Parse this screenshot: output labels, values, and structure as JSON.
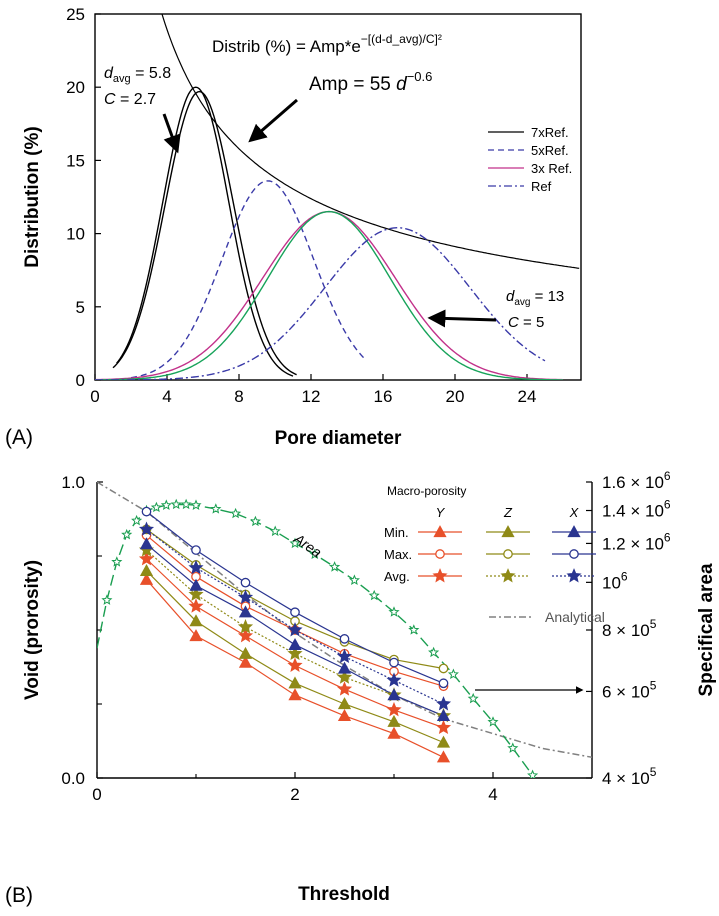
{
  "chart_data": [
    {
      "panel": "(A)",
      "type": "line",
      "xlabel": "Pore diameter",
      "ylabel": "Distribution (%)",
      "xlim": [
        0,
        27
      ],
      "ylim": [
        0,
        25
      ],
      "xticks": [
        "0",
        "4",
        "8",
        "12",
        "16",
        "20",
        "24"
      ],
      "yticks": [
        "0",
        "5",
        "10",
        "15",
        "20",
        "25"
      ],
      "grid": false,
      "legend_position": "right",
      "equation_1": "Distrib (%) = Amp*e",
      "equation_1_exp": "−[(d-d_avg)/C]²",
      "equation_2_a": "Amp = 55 ",
      "equation_2_b": "d",
      "equation_2_exp": "−0.6",
      "note_left": {
        "davg_label": "d",
        "davg_sub": "avg",
        "davg_value": " = 5.8",
        "c_label": "C",
        "c_value": " = 2.7"
      },
      "note_right": {
        "davg_label": "d",
        "davg_sub": "avg",
        "davg_value": " = 13",
        "c_label": "C",
        "c_value": " = 5"
      },
      "envelope": {
        "amp": 55,
        "exp": -0.6
      },
      "series": [
        {
          "name": "7xRef.",
          "color": "#000000",
          "dash": "solid",
          "curves": [
            {
              "amp": 19.7,
              "davg": 5.8,
              "c": 2.7,
              "xmin": 1.0,
              "xmax": 11.2
            },
            {
              "amp": 20.0,
              "davg": 5.6,
              "c": 2.6,
              "xmin": 1.2,
              "xmax": 11.0
            }
          ]
        },
        {
          "name": "5xRef.",
          "color": "#3a3aa8",
          "dash": "dashed",
          "curves": [
            {
              "amp": 13.6,
              "davg": 9.6,
              "c": 3.6,
              "xmin": 2.0,
              "xmax": 15.0
            }
          ]
        },
        {
          "name": "3x Ref.",
          "color": "#c2318a",
          "dash": "solid",
          "curves": [
            {
              "amp": 11.5,
              "davg": 13.0,
              "c": 5.2,
              "xmin": 0.0,
              "xmax": 26.0
            }
          ]
        },
        {
          "name": "",
          "color": "#17a35a",
          "dash": "solid",
          "curves": [
            {
              "amp": 11.5,
              "davg": 13.0,
              "c": 4.8,
              "xmin": 0.0,
              "xmax": 26.0
            }
          ]
        },
        {
          "name": "Ref",
          "color": "#3a3aa8",
          "dash": "dashdot",
          "curves": [
            {
              "amp": 10.4,
              "davg": 16.8,
              "c": 5.7,
              "xmin": 0.0,
              "xmax": 25.0
            }
          ]
        }
      ]
    },
    {
      "panel": "(B)",
      "type": "line",
      "xlabel": "Threshold",
      "ylabel": "Void (prorosity)",
      "y2label": "Specifical area",
      "xlim": [
        0,
        5
      ],
      "ylim": [
        0,
        1
      ],
      "y2lim": [
        400000,
        1600000
      ],
      "y2scale": "log",
      "xticks": [
        "0",
        "2",
        "4"
      ],
      "yticks": [
        "0.0",
        "1.0"
      ],
      "y2ticks": [
        {
          "value": 1600000,
          "mant": "1.6 × 10",
          "exp": "6"
        },
        {
          "value": 1400000,
          "mant": "1.4 × 10",
          "exp": "6"
        },
        {
          "value": 1200000,
          "mant": "1.2 × 10",
          "exp": "6"
        },
        {
          "value": 1000000,
          "mant": "10",
          "exp": "6"
        },
        {
          "value": 800000,
          "mant": "8 × 10",
          "exp": "5"
        },
        {
          "value": 600000,
          "mant": "6 × 10",
          "exp": "5"
        },
        {
          "value": 400000,
          "mant": "4 × 10",
          "exp": "5"
        }
      ],
      "legend": {
        "title": "Macro-porosity",
        "columns": [
          "Y",
          "Z",
          "X"
        ],
        "rows": [
          "Min.",
          "Max.",
          "Avg."
        ],
        "analytical": "Analytical"
      },
      "area_label": "Area",
      "x": [
        0.5,
        1.0,
        1.5,
        2.0,
        2.5,
        3.0,
        3.5
      ],
      "series": [
        {
          "name": "Y Min.",
          "color": "#e8502a",
          "marker": "triangle",
          "dash": "solid",
          "values": [
            0.67,
            0.48,
            0.39,
            0.28,
            0.21,
            0.15,
            0.07
          ]
        },
        {
          "name": "Y Max.",
          "color": "#e8502a",
          "marker": "circle",
          "dash": "solid",
          "values": [
            0.82,
            0.68,
            0.58,
            0.5,
            0.42,
            0.36,
            0.31
          ]
        },
        {
          "name": "Y Avg.",
          "color": "#e8502a",
          "marker": "star",
          "dash": "solid",
          "values": [
            0.74,
            0.58,
            0.48,
            0.38,
            0.3,
            0.23,
            0.17
          ]
        },
        {
          "name": "Z Min.",
          "color": "#8f8a17",
          "marker": "triangle",
          "dash": "solid",
          "values": [
            0.7,
            0.53,
            0.42,
            0.32,
            0.25,
            0.19,
            0.12
          ]
        },
        {
          "name": "Z Max.",
          "color": "#8f8a17",
          "marker": "circle",
          "dash": "solid",
          "values": [
            0.84,
            0.72,
            0.62,
            0.53,
            0.46,
            0.4,
            0.37
          ]
        },
        {
          "name": "Z Avg.",
          "color": "#8f8a17",
          "marker": "star",
          "dash": "dotted",
          "values": [
            0.77,
            0.62,
            0.51,
            0.42,
            0.34,
            0.28,
            0.21
          ]
        },
        {
          "name": "X Min.",
          "color": "#2a3590",
          "marker": "triangle",
          "dash": "solid",
          "values": [
            0.79,
            0.65,
            0.56,
            0.45,
            0.37,
            0.28,
            0.21
          ]
        },
        {
          "name": "X Max.",
          "color": "#2a3590",
          "marker": "circle",
          "dash": "solid",
          "values": [
            0.9,
            0.77,
            0.66,
            0.56,
            0.47,
            0.39,
            0.32
          ]
        },
        {
          "name": "X Avg.",
          "color": "#2a3590",
          "marker": "star",
          "dash": "dotted",
          "values": [
            0.84,
            0.71,
            0.61,
            0.5,
            0.41,
            0.33,
            0.25
          ]
        }
      ],
      "analytical": {
        "color": "#808080",
        "x": [
          0,
          0.5,
          1,
          1.5,
          2,
          2.5,
          3,
          3.5,
          4,
          4.5,
          5
        ],
        "values": [
          1.0,
          0.9,
          0.76,
          0.62,
          0.49,
          0.38,
          0.28,
          0.2,
          0.15,
          0.1,
          0.07
        ]
      },
      "area_curve": {
        "color": "#1a9e50",
        "x": [
          0,
          0.1,
          0.2,
          0.3,
          0.4,
          0.5,
          0.6,
          0.7,
          0.8,
          0.9,
          1.0,
          1.2,
          1.4,
          1.6,
          1.8,
          2.0,
          2.2,
          2.4,
          2.6,
          2.8,
          3.0,
          3.2,
          3.4,
          3.6,
          3.8,
          4.0,
          4.2,
          4.4
        ],
        "values": [
          735000,
          920000,
          1100000,
          1250000,
          1335000,
          1400000,
          1420000,
          1435000,
          1440000,
          1440000,
          1435000,
          1410000,
          1380000,
          1330000,
          1270000,
          1200000,
          1140000,
          1075000,
          1010000,
          940000,
          870000,
          800000,
          720000,
          650000,
          580000,
          520000,
          460000,
          405000
        ]
      }
    }
  ]
}
